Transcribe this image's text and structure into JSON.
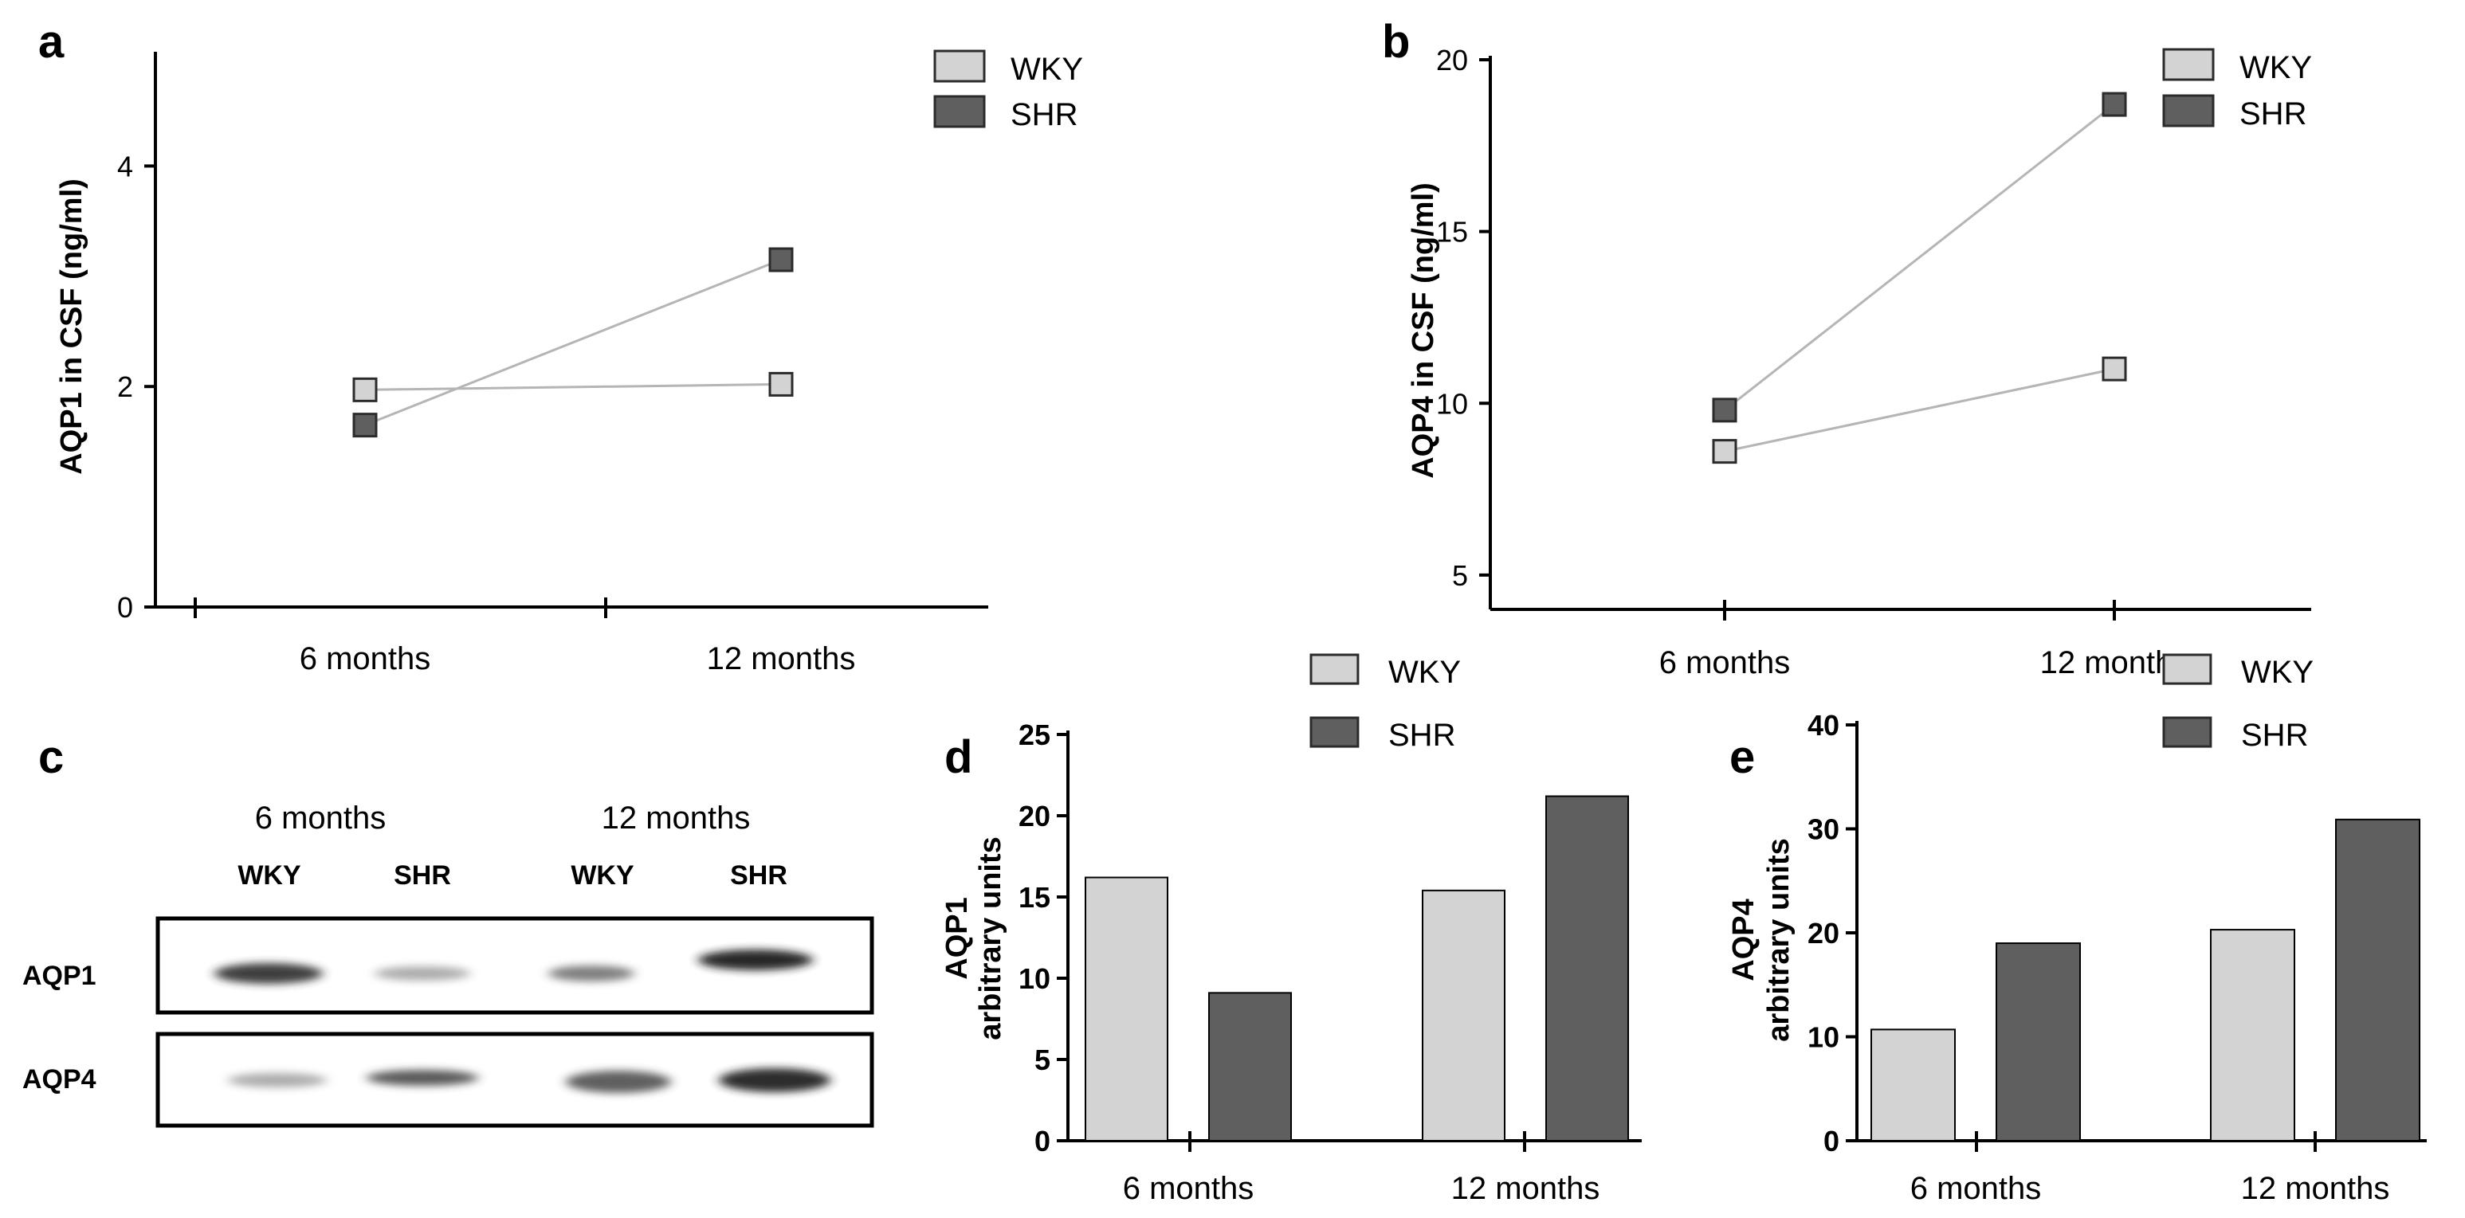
{
  "colors": {
    "wky": "#d3d3d3",
    "shr": "#5f5f5f",
    "axis": "#000000",
    "connector": "#b5b5b5"
  },
  "panels": {
    "a": {
      "letter": "a"
    },
    "b": {
      "letter": "b"
    },
    "c": {
      "letter": "c",
      "groups": [
        "6 months",
        "12 months"
      ],
      "lanes": [
        "WKY",
        "SHR",
        "WKY",
        "SHR"
      ],
      "rows": [
        "AQP1",
        "AQP4"
      ]
    },
    "d": {
      "letter": "d"
    },
    "e": {
      "letter": "e"
    }
  },
  "chart_data": [
    {
      "panel": "a",
      "type": "line",
      "categories": [
        "6 months",
        "12 months"
      ],
      "series": [
        {
          "name": "WKY",
          "values": [
            1.97,
            2.02
          ]
        },
        {
          "name": "SHR",
          "values": [
            1.65,
            3.15
          ]
        }
      ],
      "ylabel": "AQP1 in CSF (ng/ml)",
      "xlabel": "",
      "ylim": [
        0,
        5
      ],
      "yticks": [
        0,
        2,
        4
      ],
      "legend": "top-right",
      "grid": false
    },
    {
      "panel": "b",
      "type": "line",
      "categories": [
        "6 months",
        "12 months"
      ],
      "series": [
        {
          "name": "WKY",
          "values": [
            8.6,
            11.0
          ]
        },
        {
          "name": "SHR",
          "values": [
            9.8,
            18.7
          ]
        }
      ],
      "ylabel": "AQP4 in CSF (ng/ml)",
      "xlabel": "",
      "ylim": [
        4,
        20
      ],
      "yticks": [
        5,
        10,
        15,
        20
      ],
      "legend": "top-right",
      "grid": false
    },
    {
      "panel": "d",
      "type": "bar",
      "categories": [
        "6 months",
        "12 months"
      ],
      "series": [
        {
          "name": "WKY",
          "values": [
            16.2,
            15.4
          ]
        },
        {
          "name": "SHR",
          "values": [
            9.1,
            21.2
          ]
        }
      ],
      "ylabel": [
        "AQP1",
        "arbitrary units"
      ],
      "xlabel": "",
      "ylim": [
        0,
        25
      ],
      "yticks": [
        0,
        5,
        10,
        15,
        20,
        25
      ],
      "legend": "top-right",
      "grid": false
    },
    {
      "panel": "e",
      "type": "bar",
      "categories": [
        "6 months",
        "12 months"
      ],
      "series": [
        {
          "name": "WKY",
          "values": [
            10.7,
            20.3
          ]
        },
        {
          "name": "SHR",
          "values": [
            19.0,
            30.9
          ]
        }
      ],
      "ylabel": [
        "AQP4",
        "arbitrary units"
      ],
      "xlabel": "",
      "ylim": [
        0,
        40
      ],
      "yticks": [
        0,
        10,
        20,
        30,
        40
      ],
      "legend": "top-right",
      "grid": false
    }
  ]
}
